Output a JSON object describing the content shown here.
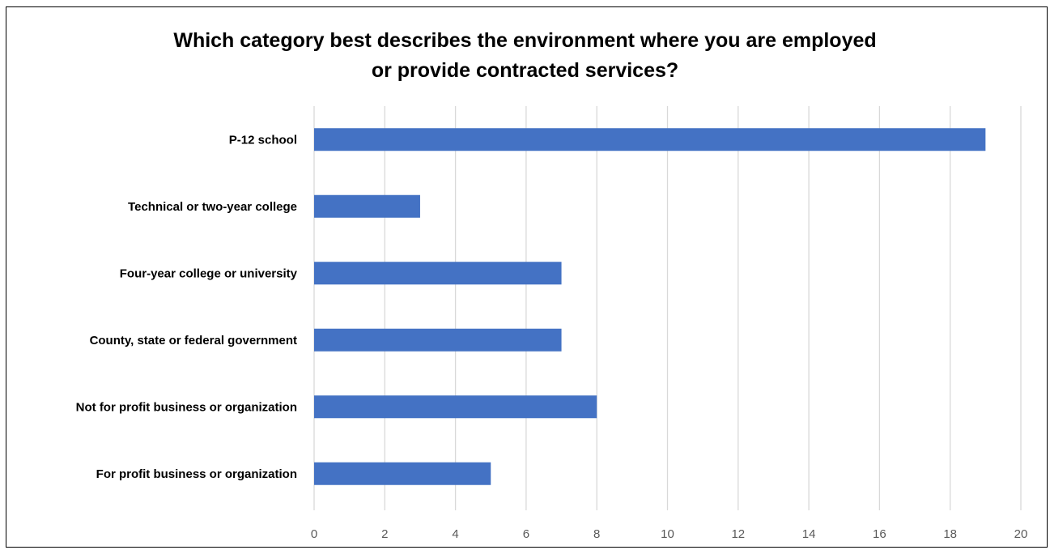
{
  "chart_data": {
    "type": "bar",
    "orientation": "horizontal",
    "title_lines": [
      "Which category best describes the environment where you are employed",
      "or provide contracted services?"
    ],
    "categories": [
      "P-12 school",
      "Technical or two-year college",
      "Four-year college or university",
      "County, state or federal government",
      "Not for profit business or organization",
      "For profit business or organization"
    ],
    "values": [
      19,
      3,
      7,
      7,
      8,
      5
    ],
    "xlim": [
      0,
      20
    ],
    "xticks": [
      "0",
      "2",
      "4",
      "6",
      "8",
      "10",
      "12",
      "14",
      "16",
      "18",
      "20"
    ],
    "grid": "vertical",
    "bar_color": "#4472C4",
    "grid_color": "#D9D9D9"
  }
}
